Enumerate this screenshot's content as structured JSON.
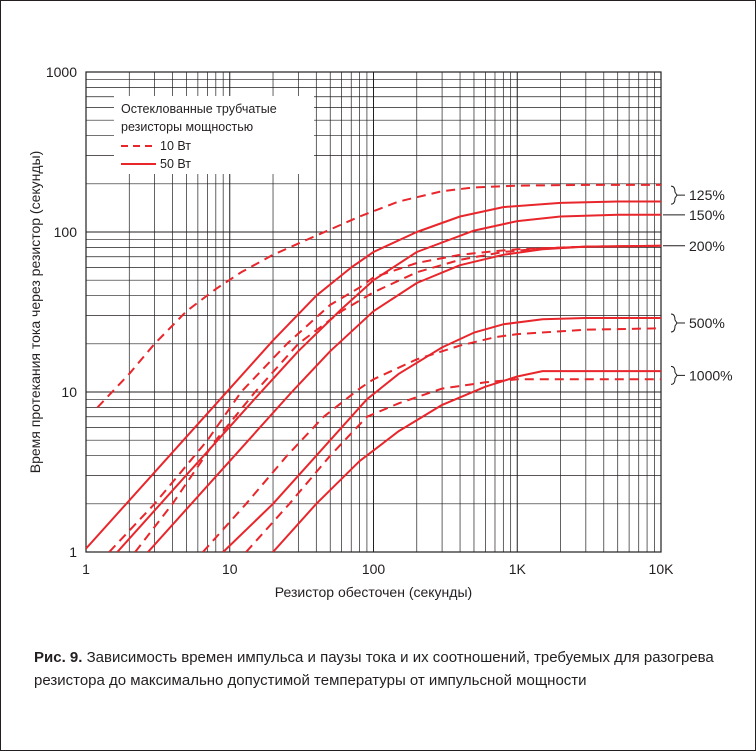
{
  "chart_data": {
    "type": "line",
    "xscale": "log",
    "yscale": "log",
    "xlim": [
      1,
      10000
    ],
    "ylim": [
      1,
      1000
    ],
    "xlabel": "Резистор обесточен (секунды)",
    "ylabel": "Время протекания тока через резистор (секунды)",
    "xticks": [
      {
        "value": 1,
        "label": "1"
      },
      {
        "value": 10,
        "label": "10"
      },
      {
        "value": 100,
        "label": "100"
      },
      {
        "value": 1000,
        "label": "1K"
      },
      {
        "value": 10000,
        "label": "10K"
      }
    ],
    "yticks": [
      {
        "value": 1,
        "label": "1"
      },
      {
        "value": 10,
        "label": "10"
      },
      {
        "value": 100,
        "label": "100"
      },
      {
        "value": 1000,
        "label": "1000"
      }
    ],
    "grid": true,
    "legend": {
      "position": "top-left",
      "title_lines": [
        "Остеклованные трубчатые",
        "резисторы мощностью"
      ],
      "entries": [
        {
          "label": "10 Вт",
          "style": "dashed"
        },
        {
          "label": "50 Вт",
          "style": "solid"
        }
      ]
    },
    "line_color": "#e8262b",
    "series": [
      {
        "style": "dashed",
        "group": "125%",
        "points": [
          [
            1.2,
            8
          ],
          [
            2,
            13
          ],
          [
            3,
            20
          ],
          [
            5,
            32
          ],
          [
            8,
            44
          ],
          [
            12,
            56
          ],
          [
            20,
            72
          ],
          [
            40,
            95
          ],
          [
            80,
            125
          ],
          [
            150,
            155
          ],
          [
            300,
            180
          ],
          [
            500,
            190
          ],
          [
            1000,
            195
          ],
          [
            3000,
            197
          ],
          [
            10000,
            197
          ]
        ]
      },
      {
        "style": "solid",
        "group": "125%",
        "points": [
          [
            1,
            1.05
          ],
          [
            10,
            10.5
          ],
          [
            20,
            21
          ],
          [
            40,
            40
          ],
          [
            70,
            60
          ],
          [
            100,
            75
          ],
          [
            200,
            100
          ],
          [
            400,
            125
          ],
          [
            800,
            143
          ],
          [
            2000,
            152
          ],
          [
            5000,
            155
          ],
          [
            10000,
            155
          ]
        ]
      },
      {
        "style": "solid",
        "group": "150%",
        "points": [
          [
            1.65,
            1
          ],
          [
            16.5,
            10
          ],
          [
            30,
            18
          ],
          [
            60,
            33
          ],
          [
            100,
            50
          ],
          [
            200,
            75
          ],
          [
            500,
            102
          ],
          [
            1000,
            117
          ],
          [
            2000,
            125
          ],
          [
            5000,
            128
          ],
          [
            10000,
            128
          ]
        ]
      },
      {
        "style": "dashed",
        "group": "150%",
        "points": [
          [
            1.45,
            1
          ],
          [
            3,
            2
          ],
          [
            7,
            5
          ],
          [
            12,
            10
          ],
          [
            25,
            20
          ],
          [
            50,
            35
          ],
          [
            80,
            45
          ],
          [
            100,
            52
          ],
          [
            200,
            64
          ],
          [
            400,
            72
          ],
          [
            700,
            76
          ],
          [
            1000,
            78
          ],
          [
            3000,
            81
          ],
          [
            10000,
            82
          ]
        ]
      },
      {
        "style": "dashed",
        "group": "200%",
        "points": [
          [
            2.2,
            1
          ],
          [
            4,
            2
          ],
          [
            8,
            5
          ],
          [
            15,
            10
          ],
          [
            30,
            20
          ],
          [
            60,
            32
          ],
          [
            100,
            42
          ],
          [
            200,
            56
          ],
          [
            400,
            67
          ],
          [
            800,
            75
          ],
          [
            1500,
            79
          ],
          [
            3000,
            81
          ],
          [
            10000,
            82
          ]
        ]
      },
      {
        "style": "solid",
        "group": "200%",
        "points": [
          [
            2.7,
            1
          ],
          [
            27,
            10
          ],
          [
            50,
            18
          ],
          [
            100,
            32
          ],
          [
            200,
            48
          ],
          [
            400,
            62
          ],
          [
            800,
            72
          ],
          [
            1500,
            78
          ],
          [
            3000,
            81
          ],
          [
            10000,
            82
          ]
        ]
      },
      {
        "style": "dashed",
        "group": "500%",
        "points": [
          [
            6.5,
            1
          ],
          [
            13,
            2
          ],
          [
            25,
            4
          ],
          [
            45,
            7
          ],
          [
            80,
            10.5
          ],
          [
            100,
            12
          ],
          [
            200,
            16
          ],
          [
            400,
            19.5
          ],
          [
            700,
            22
          ],
          [
            1000,
            23
          ],
          [
            3000,
            24.5
          ],
          [
            10000,
            25
          ]
        ]
      },
      {
        "style": "solid",
        "group": "500%",
        "points": [
          [
            9,
            1
          ],
          [
            20,
            2
          ],
          [
            40,
            4
          ],
          [
            90,
            9
          ],
          [
            150,
            13
          ],
          [
            300,
            19
          ],
          [
            500,
            23.5
          ],
          [
            800,
            26.5
          ],
          [
            1500,
            28.5
          ],
          [
            3000,
            29
          ],
          [
            10000,
            29
          ]
        ]
      },
      {
        "style": "dashed",
        "group": "1000%",
        "points": [
          [
            13,
            1
          ],
          [
            26,
            2
          ],
          [
            50,
            4
          ],
          [
            90,
            7
          ],
          [
            150,
            8.5
          ],
          [
            300,
            10.5
          ],
          [
            600,
            11.5
          ],
          [
            1000,
            12
          ],
          [
            3000,
            12
          ],
          [
            10000,
            12
          ]
        ]
      },
      {
        "style": "solid",
        "group": "1000%",
        "points": [
          [
            20,
            1
          ],
          [
            40,
            2
          ],
          [
            80,
            3.7
          ],
          [
            150,
            5.7
          ],
          [
            300,
            8.3
          ],
          [
            600,
            10.8
          ],
          [
            1000,
            12.5
          ],
          [
            1500,
            13.5
          ],
          [
            3000,
            13.5
          ],
          [
            10000,
            13.5
          ]
        ]
      }
    ],
    "right_labels": [
      {
        "label": "125%",
        "y": 170,
        "bracket": true
      },
      {
        "label": "150%",
        "y": 128,
        "bracket": false
      },
      {
        "label": "200%",
        "y": 82,
        "bracket": false
      },
      {
        "label": "500%",
        "y": 27,
        "bracket": true
      },
      {
        "label": "1000%",
        "y": 12.7,
        "bracket": true
      }
    ]
  },
  "caption": {
    "figure_label": "Рис. 9.",
    "text": "Зависимость времен импульса и паузы тока и их соотношений, требуемых для разогрева резистора до максимально допустимой температуры от импульсной мощности"
  }
}
